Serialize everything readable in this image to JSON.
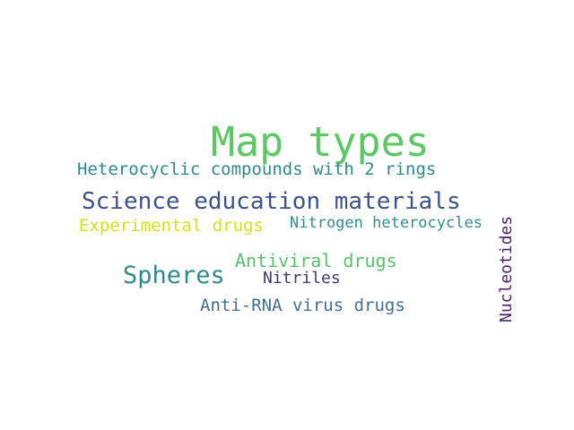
{
  "words": [
    {
      "text": "Map types",
      "color": "#5cc863"
    },
    {
      "text": "Heterocyclic compounds with 2 rings",
      "color": "#2a8a8c"
    },
    {
      "text": "Science education materials",
      "color": "#3b528b"
    },
    {
      "text": "Experimental drugs",
      "color": "#d2e21b"
    },
    {
      "text": "Nitrogen heterocycles",
      "color": "#2f8f8c"
    },
    {
      "text": "Antiviral drugs",
      "color": "#54c26b"
    },
    {
      "text": "Spheres",
      "color": "#2d8b8b"
    },
    {
      "text": "Nitriles",
      "color": "#45347b"
    },
    {
      "text": "Anti-RNA virus drugs",
      "color": "#3f6f94"
    },
    {
      "text": "Nucleotides",
      "color": "#4b1f69"
    }
  ]
}
